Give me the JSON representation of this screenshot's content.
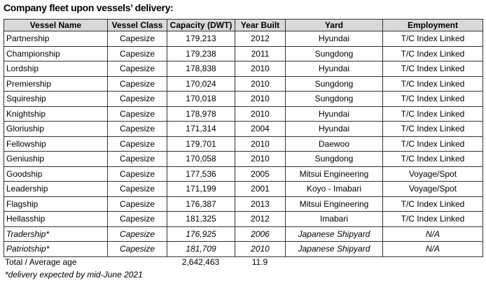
{
  "title": "Company fleet upon vessels’ delivery:",
  "table": {
    "header": [
      "Vessel Name",
      "Vessel Class",
      "Capacity (DWT)",
      "Year Built",
      "Yard",
      "Employment"
    ],
    "rows": [
      [
        "Partnership",
        "Capesize",
        "179,213",
        "2012",
        "Hyundai",
        "T/C Index Linked"
      ],
      [
        "Championship",
        "Capesize",
        "179,238",
        "2011",
        "Sungdong",
        "T/C Index Linked"
      ],
      [
        "Lordship",
        "Capesize",
        "178,838",
        "2010",
        "Hyundai",
        "T/C Index Linked"
      ],
      [
        "Premiership",
        "Capesize",
        "170,024",
        "2010",
        "Sungdong",
        "T/C Index Linked"
      ],
      [
        "Squireship",
        "Capesize",
        "170,018",
        "2010",
        "Sungdong",
        "T/C Index Linked"
      ],
      [
        "Knightship",
        "Capesize",
        "178,978",
        "2010",
        "Hyundai",
        "T/C Index Linked"
      ],
      [
        "Gloriuship",
        "Capesize",
        "171,314",
        "2004",
        "Hyundai",
        "T/C Index Linked"
      ],
      [
        "Fellowship",
        "Capesize",
        "179,701",
        "2010",
        "Daewoo",
        "T/C Index Linked"
      ],
      [
        "Geniuship",
        "Capesize",
        "170,058",
        "2010",
        "Sungdong",
        "T/C Index Linked"
      ],
      [
        "Goodship",
        "Capesize",
        "177,536",
        "2005",
        "Mitsui Engineering",
        "Voyage/Spot"
      ],
      [
        "Leadership",
        "Capesize",
        "171,199",
        "2001",
        "Koyo - Imabari",
        "Voyage/Spot"
      ],
      [
        "Flagship",
        "Capesize",
        "176,387",
        "2013",
        "Mitsui Engineering",
        "T/C Index Linked"
      ],
      [
        "Hellasship",
        "Capesize",
        "181,325",
        "2012",
        "Imabari",
        "T/C Index Linked"
      ],
      [
        "Tradership*",
        "Capesize",
        "176,925",
        "2006",
        "Japanese Shipyard",
        "N/A"
      ],
      [
        "Patriotship*",
        "Capesize",
        "181,709",
        "2010",
        "Japanese Shipyard",
        "N/A"
      ]
    ]
  },
  "total": {
    "label": "Total / Average age",
    "capacity": "2,642,463",
    "age": "11.9"
  },
  "footnote": "*delivery expected by mid-June 2021"
}
